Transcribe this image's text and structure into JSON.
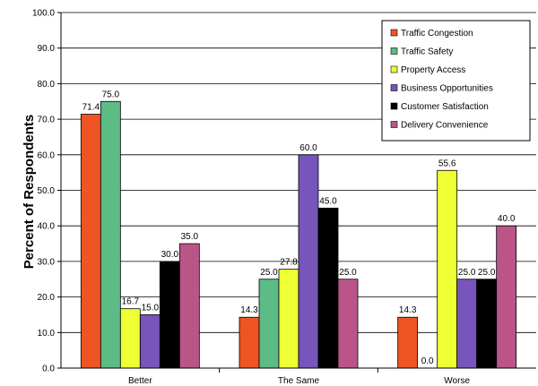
{
  "chart_data": {
    "type": "bar",
    "title": "",
    "xlabel": "",
    "ylabel": "Percent of Respondents",
    "ylim": [
      0,
      100
    ],
    "yticks": [
      "0.0",
      "10.0",
      "20.0",
      "30.0",
      "40.0",
      "50.0",
      "60.0",
      "70.0",
      "80.0",
      "90.0",
      "100.0"
    ],
    "grid": true,
    "legend_position": "top-right",
    "categories": [
      "Better",
      "The Same",
      "Worse"
    ],
    "series": [
      {
        "name": "Traffic Congestion",
        "color": "#ee5522",
        "values": [
          71.4,
          14.3,
          14.3
        ],
        "labels": [
          "71.4",
          "14.3",
          "14.3"
        ]
      },
      {
        "name": "Traffic Safety",
        "color": "#5dbb85",
        "values": [
          75.0,
          25.0,
          0.0
        ],
        "labels": [
          "75.0",
          "25.0",
          "0.0"
        ]
      },
      {
        "name": "Property Access",
        "color": "#eeff33",
        "values": [
          16.7,
          27.8,
          55.6
        ],
        "labels": [
          "16.7",
          "27.8",
          "55.6"
        ]
      },
      {
        "name": "Business Opportunities",
        "color": "#7755bb",
        "values": [
          15.0,
          60.0,
          25.0
        ],
        "labels": [
          "15.0",
          "60.0",
          "25.0"
        ]
      },
      {
        "name": "Customer Satisfaction",
        "color": "#000000",
        "values": [
          30.0,
          45.0,
          25.0
        ],
        "labels": [
          "30.0",
          "45.0",
          "25.0"
        ]
      },
      {
        "name": "Delivery Convenience",
        "color": "#bb5588",
        "values": [
          35.0,
          25.0,
          40.0
        ],
        "labels": [
          "35.0",
          "25.0",
          "40.0"
        ]
      }
    ]
  }
}
